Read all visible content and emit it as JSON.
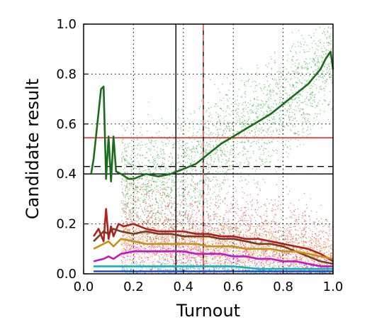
{
  "chart_data": {
    "type": "scatter",
    "title": "",
    "xlabel": "Turnout",
    "ylabel": "Candidate result",
    "xlim": [
      0.0,
      1.0
    ],
    "ylim": [
      0.0,
      1.0
    ],
    "x_ticks": [
      "0.0",
      "0.2",
      "0.4",
      "0.6",
      "0.8",
      "1.0"
    ],
    "y_ticks": [
      "0.0",
      "0.2",
      "0.4",
      "0.6",
      "0.8",
      "1.0"
    ],
    "grid": "dotted",
    "legend": "none",
    "reference_lines": [
      {
        "orientation": "horizontal",
        "y": 0.545,
        "color": "#ff0000",
        "style": "solid"
      },
      {
        "orientation": "horizontal",
        "y": 0.43,
        "color": "#000000",
        "style": "dashed"
      },
      {
        "orientation": "horizontal",
        "y": 0.4,
        "color": "#000000",
        "style": "solid"
      },
      {
        "orientation": "vertical",
        "x": 0.37,
        "color": "#000000",
        "style": "solid"
      },
      {
        "orientation": "vertical",
        "x": 0.48,
        "color": "#000000",
        "style": "solid"
      },
      {
        "orientation": "vertical",
        "x": 0.48,
        "color": "#ff6666",
        "style": "dashed"
      }
    ],
    "series": [
      {
        "color": "#1a6b1a",
        "scatter_color": "#2ca02c",
        "x": [
          0.03,
          0.04,
          0.07,
          0.08,
          0.09,
          0.1,
          0.11,
          0.12,
          0.13,
          0.15,
          0.18,
          0.2,
          0.25,
          0.3,
          0.35,
          0.4,
          0.45,
          0.5,
          0.55,
          0.6,
          0.65,
          0.7,
          0.75,
          0.8,
          0.85,
          0.9,
          0.95,
          0.97,
          0.99,
          1.0
        ],
        "values": [
          0.4,
          0.46,
          0.74,
          0.75,
          0.38,
          0.55,
          0.37,
          0.55,
          0.41,
          0.4,
          0.38,
          0.38,
          0.4,
          0.39,
          0.4,
          0.42,
          0.44,
          0.48,
          0.52,
          0.55,
          0.58,
          0.61,
          0.64,
          0.68,
          0.72,
          0.76,
          0.82,
          0.86,
          0.89,
          0.82
        ]
      },
      {
        "color": "#b21f1f",
        "scatter_color": "#d62728",
        "x": [
          0.04,
          0.06,
          0.08,
          0.09,
          0.1,
          0.11,
          0.12,
          0.14,
          0.16,
          0.2,
          0.25,
          0.3,
          0.35,
          0.4,
          0.45,
          0.5,
          0.55,
          0.6,
          0.65,
          0.7,
          0.75,
          0.8,
          0.85,
          0.9,
          0.95,
          1.0
        ],
        "values": [
          0.15,
          0.18,
          0.13,
          0.26,
          0.14,
          0.19,
          0.15,
          0.2,
          0.19,
          0.2,
          0.18,
          0.17,
          0.17,
          0.17,
          0.16,
          0.16,
          0.15,
          0.15,
          0.14,
          0.14,
          0.13,
          0.12,
          0.11,
          0.1,
          0.08,
          0.05
        ]
      },
      {
        "color": "#7a3b1f",
        "scatter_color": "#8c564b",
        "x": [
          0.04,
          0.08,
          0.1,
          0.12,
          0.15,
          0.2,
          0.25,
          0.3,
          0.35,
          0.4,
          0.45,
          0.5,
          0.55,
          0.6,
          0.65,
          0.7,
          0.75,
          0.8,
          0.85,
          0.9,
          0.95,
          1.0
        ],
        "values": [
          0.13,
          0.17,
          0.16,
          0.18,
          0.17,
          0.16,
          0.17,
          0.16,
          0.16,
          0.15,
          0.15,
          0.15,
          0.14,
          0.14,
          0.13,
          0.12,
          0.12,
          0.11,
          0.09,
          0.07,
          0.05,
          0.04
        ]
      },
      {
        "color": "#c8901a",
        "scatter_color": "#ffa500",
        "x": [
          0.04,
          0.08,
          0.1,
          0.12,
          0.15,
          0.2,
          0.25,
          0.3,
          0.35,
          0.4,
          0.45,
          0.5,
          0.55,
          0.6,
          0.65,
          0.7,
          0.75,
          0.8,
          0.85,
          0.9,
          0.95,
          1.0
        ],
        "values": [
          0.1,
          0.12,
          0.13,
          0.11,
          0.14,
          0.13,
          0.12,
          0.12,
          0.12,
          0.12,
          0.12,
          0.11,
          0.11,
          0.11,
          0.1,
          0.1,
          0.1,
          0.09,
          0.09,
          0.08,
          0.07,
          0.06
        ]
      },
      {
        "color": "#c217c2",
        "scatter_color": "#ff00ff",
        "x": [
          0.04,
          0.08,
          0.1,
          0.12,
          0.15,
          0.2,
          0.25,
          0.3,
          0.35,
          0.4,
          0.45,
          0.5,
          0.55,
          0.6,
          0.65,
          0.7,
          0.75,
          0.8,
          0.85,
          0.9,
          0.95,
          1.0
        ],
        "values": [
          0.05,
          0.06,
          0.07,
          0.06,
          0.08,
          0.09,
          0.09,
          0.09,
          0.09,
          0.09,
          0.08,
          0.08,
          0.08,
          0.07,
          0.07,
          0.06,
          0.06,
          0.05,
          0.05,
          0.04,
          0.03,
          0.03
        ]
      },
      {
        "color": "#17b0b0",
        "scatter_color": "#17becf",
        "x": [
          0.04,
          0.08,
          0.12,
          0.2,
          0.3,
          0.4,
          0.5,
          0.6,
          0.7,
          0.8,
          0.9,
          1.0
        ],
        "values": [
          0.03,
          0.03,
          0.03,
          0.03,
          0.03,
          0.03,
          0.03,
          0.03,
          0.02,
          0.02,
          0.02,
          0.02
        ]
      },
      {
        "color": "#1f4fbf",
        "scatter_color": "#1f77b4",
        "x": [
          0.04,
          0.08,
          0.12,
          0.2,
          0.3,
          0.4,
          0.5,
          0.6,
          0.7,
          0.8,
          0.9,
          1.0
        ],
        "values": [
          0.01,
          0.01,
          0.01,
          0.01,
          0.01,
          0.01,
          0.01,
          0.01,
          0.01,
          0.01,
          0.01,
          0.01
        ]
      }
    ]
  }
}
